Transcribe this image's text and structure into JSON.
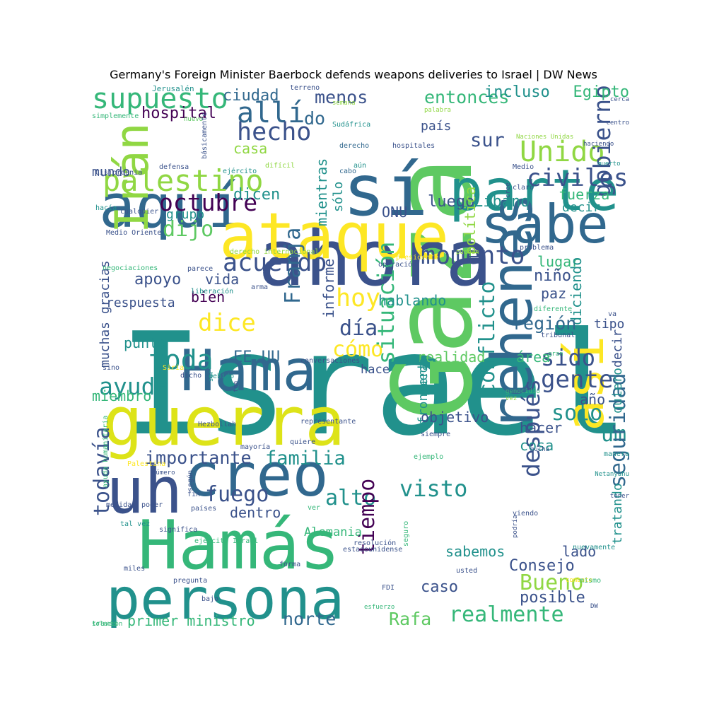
{
  "title": "Germany's Foreign Minister Baerbock defends weapons deliveries to Israel | DW News",
  "palette": {
    "dark_purple": "#440154",
    "indigo": "#3b528b",
    "blue": "#31688e",
    "teal": "#21918c",
    "sea": "#35b779",
    "green": "#5ec962",
    "lime": "#90d743",
    "yellow": "#fde725"
  },
  "words": [
    {
      "text": "Israel",
      "size": 2,
      "color": "#21918c",
      "rot": 0
    },
    {
      "text": "Gaza",
      "size": 1.45,
      "color": "#5ec962",
      "rot": -90
    },
    {
      "text": "ahora",
      "size": 1.05,
      "color": "#3b528b",
      "rot": 0
    },
    {
      "text": "sí",
      "size": 0.95,
      "color": "#31688e",
      "rot": 0
    },
    {
      "text": "parte",
      "size": 0.75,
      "color": "#21918c",
      "rot": 0
    },
    {
      "text": "aquí",
      "size": 0.8,
      "color": "#31688e",
      "rot": 0
    },
    {
      "text": "ataque",
      "size": 0.85,
      "color": "#fde725",
      "rot": 0
    },
    {
      "text": "sabe",
      "size": 0.75,
      "color": "#31688e",
      "rot": 0
    },
    {
      "text": "Hama",
      "size": 0.8,
      "color": "#31688e",
      "rot": 0
    },
    {
      "text": "guerra",
      "size": 0.9,
      "color": "#dde318",
      "rot": 0
    },
    {
      "text": "uh",
      "size": 0.9,
      "color": "#3b528b",
      "rot": 0
    },
    {
      "text": "creo",
      "size": 0.8,
      "color": "#31688e",
      "rot": 0
    },
    {
      "text": "Hamás",
      "size": 0.9,
      "color": "#35b779",
      "rot": 0
    },
    {
      "text": "persona",
      "size": 0.75,
      "color": "#21918c",
      "rot": 0
    },
    {
      "text": "rehenes",
      "size": 0.75,
      "color": "#31688e",
      "rot": -90
    },
    {
      "text": "así",
      "size": 0.7,
      "color": "#fde725",
      "rot": -90
    },
    {
      "text": "Irán",
      "size": 0.6,
      "color": "#90d743",
      "rot": -90
    },
    {
      "text": "supuesto",
      "size": 0.4,
      "color": "#35b779",
      "rot": 0
    },
    {
      "text": "allí",
      "size": 0.4,
      "color": "#31688e",
      "rot": 0
    },
    {
      "text": "hecho",
      "size": 0.35,
      "color": "#3b528b",
      "rot": 0
    },
    {
      "text": "palestino",
      "size": 0.42,
      "color": "#90d743",
      "rot": 0
    },
    {
      "text": "octubre",
      "size": 0.33,
      "color": "#440154",
      "rot": 0
    },
    {
      "text": "dijo",
      "size": 0.3,
      "color": "#5ec962",
      "rot": 0
    },
    {
      "text": "Unido",
      "size": 0.4,
      "color": "#90d743",
      "rot": 0
    },
    {
      "text": "civiles",
      "size": 0.34,
      "color": "#3b528b",
      "rot": 0
    },
    {
      "text": "gobierno",
      "size": 0.33,
      "color": "#3b528b",
      "rot": -90
    },
    {
      "text": "acuerdo",
      "size": 0.35,
      "color": "#3b528b",
      "rot": 0
    },
    {
      "text": "momento",
      "size": 0.35,
      "color": "#3b528b",
      "rot": 0
    },
    {
      "text": "hoy",
      "size": 0.35,
      "color": "#fde725",
      "rot": 0
    },
    {
      "text": "dice",
      "size": 0.34,
      "color": "#fde725",
      "rot": 0
    },
    {
      "text": "día",
      "size": 0.3,
      "color": "#3b528b",
      "rot": 0
    },
    {
      "text": "cómo",
      "size": 0.3,
      "color": "#fde725",
      "rot": 0
    },
    {
      "text": "Franja",
      "size": 0.3,
      "color": "#31688e",
      "rot": -90
    },
    {
      "text": "toda",
      "size": 0.38,
      "color": "#21918c",
      "rot": 0
    },
    {
      "text": "ayuda",
      "size": 0.33,
      "color": "#21918c",
      "rot": 0
    },
    {
      "text": "sido",
      "size": 0.32,
      "color": "#3b528b",
      "rot": 0
    },
    {
      "text": "gente",
      "size": 0.34,
      "color": "#3b528b",
      "rot": 0
    },
    {
      "text": "solo",
      "size": 0.3,
      "color": "#21918c",
      "rot": 0
    },
    {
      "text": "um",
      "size": 0.3,
      "color": "#21918c",
      "rot": 0
    },
    {
      "text": "situación",
      "size": 0.32,
      "color": "#35b779",
      "rot": -90
    },
    {
      "text": "conflicto",
      "size": 0.3,
      "color": "#21918c",
      "rot": -90
    },
    {
      "text": "visto",
      "size": 0.32,
      "color": "#21918c",
      "rot": 0
    },
    {
      "text": "familia",
      "size": 0.27,
      "color": "#21918c",
      "rot": 0
    },
    {
      "text": "importante",
      "size": 0.25,
      "color": "#3b528b",
      "rot": 0
    },
    {
      "text": "fuego",
      "size": 0.3,
      "color": "#3b528b",
      "rot": 0
    },
    {
      "text": "alto",
      "size": 0.3,
      "color": "#21918c",
      "rot": 0
    },
    {
      "text": "todavía",
      "size": 0.3,
      "color": "#3b528b",
      "rot": -90
    },
    {
      "text": "después",
      "size": 0.33,
      "color": "#3b528b",
      "rot": -90
    },
    {
      "text": "seguridad",
      "size": 0.3,
      "color": "#31688e",
      "rot": -90
    },
    {
      "text": "tiempo",
      "size": 0.3,
      "color": "#440154",
      "rot": -90
    },
    {
      "text": "Bueno",
      "size": 0.3,
      "color": "#90d743",
      "rot": 0
    },
    {
      "text": "realmente",
      "size": 0.3,
      "color": "#35b779",
      "rot": 0
    },
    {
      "text": "Rafa",
      "size": 0.25,
      "color": "#5ec962",
      "rot": 0
    },
    {
      "text": "norte",
      "size": 0.25,
      "color": "#31688e",
      "rot": 0
    },
    {
      "text": "primer ministro",
      "size": 0.2,
      "color": "#35b779",
      "rot": 0
    },
    {
      "text": "ciudad",
      "size": 0.22,
      "color": "#31688e",
      "rot": 0
    },
    {
      "text": "menos",
      "size": 0.25,
      "color": "#3b528b",
      "rot": 0
    },
    {
      "text": "entonces",
      "size": 0.25,
      "color": "#35b779",
      "rot": 0
    },
    {
      "text": "incluso",
      "size": 0.22,
      "color": "#21918c",
      "rot": 0
    },
    {
      "text": "Egipto",
      "size": 0.22,
      "color": "#35b779",
      "rot": 0
    },
    {
      "text": "hospital",
      "size": 0.22,
      "color": "#440154",
      "rot": 0
    },
    {
      "text": "do",
      "size": 0.25,
      "color": "#31688e",
      "rot": 0
    },
    {
      "text": "sur",
      "size": 0.27,
      "color": "#3b528b",
      "rot": 0
    },
    {
      "text": "mundo",
      "size": 0.18,
      "color": "#3b528b",
      "rot": 0
    },
    {
      "text": "grupo",
      "size": 0.18,
      "color": "#21918c",
      "rot": 0
    },
    {
      "text": "ONU",
      "size": 0.2,
      "color": "#3b528b",
      "rot": 0
    },
    {
      "text": "luego",
      "size": 0.22,
      "color": "#3b528b",
      "rot": 0
    },
    {
      "text": "Líbano",
      "size": 0.22,
      "color": "#21918c",
      "rot": 0
    },
    {
      "text": "fuerza",
      "size": 0.2,
      "color": "#35b779",
      "rot": 0
    },
    {
      "text": "decir",
      "size": 0.18,
      "color": "#21918c",
      "rot": 0
    },
    {
      "text": "dicen",
      "size": 0.22,
      "color": "#21918c",
      "rot": 0
    },
    {
      "text": "casa",
      "size": 0.2,
      "color": "#90d743",
      "rot": 0
    },
    {
      "text": "mientras",
      "size": 0.2,
      "color": "#21918c",
      "rot": -90
    },
    {
      "text": "sólo",
      "size": 0.18,
      "color": "#21918c",
      "rot": -90
    },
    {
      "text": "política",
      "size": 0.2,
      "color": "#90d743",
      "rot": -90
    },
    {
      "text": "país",
      "size": 0.18,
      "color": "#3b528b",
      "rot": 0
    },
    {
      "text": "vida",
      "size": 0.2,
      "color": "#3b528b",
      "rot": 0
    },
    {
      "text": "apoyo",
      "size": 0.22,
      "color": "#3b528b",
      "rot": 0
    },
    {
      "text": "respuesta",
      "size": 0.18,
      "color": "#3b528b",
      "rot": 0
    },
    {
      "text": "bien",
      "size": 0.2,
      "color": "#440154",
      "rot": 0
    },
    {
      "text": "hablando",
      "size": 0.2,
      "color": "#21918c",
      "rot": 0
    },
    {
      "text": "informe",
      "size": 0.2,
      "color": "#3b528b",
      "rot": -90
    },
    {
      "text": "lugar",
      "size": 0.2,
      "color": "#35b779",
      "rot": 0
    },
    {
      "text": "niño",
      "size": 0.22,
      "color": "#3b528b",
      "rot": 0
    },
    {
      "text": "paz",
      "size": 0.2,
      "color": "#3b528b",
      "rot": 0
    },
    {
      "text": "diciendo",
      "size": 0.2,
      "color": "#21918c",
      "rot": -90
    },
    {
      "text": "región",
      "size": 0.25,
      "color": "#31688e",
      "rot": 0
    },
    {
      "text": "tipo",
      "size": 0.18,
      "color": "#3b528b",
      "rot": 0
    },
    {
      "text": "muchas gracias",
      "size": 0.18,
      "color": "#3b528b",
      "rot": -90
    },
    {
      "text": "punto",
      "size": 0.2,
      "color": "#21918c",
      "rot": 0
    },
    {
      "text": "EE UU",
      "size": 0.22,
      "color": "#31688e",
      "rot": 0
    },
    {
      "text": "realidad",
      "size": 0.2,
      "color": "#5ec962",
      "rot": 0
    },
    {
      "text": "área",
      "size": 0.2,
      "color": "#35b779",
      "rot": 0
    },
    {
      "text": "decir",
      "size": 0.18,
      "color": "#3b528b",
      "rot": -90
    },
    {
      "text": "quiero",
      "size": 0.18,
      "color": "#21918c",
      "rot": -90
    },
    {
      "text": "año",
      "size": 0.2,
      "color": "#3b528b",
      "rot": 0
    },
    {
      "text": "miembro",
      "size": 0.2,
      "color": "#35b779",
      "rot": 0
    },
    {
      "text": "hace",
      "size": 0.17,
      "color": "#3b528b",
      "rot": 0
    },
    {
      "text": "puede",
      "size": 0.18,
      "color": "#21918c",
      "rot": -90
    },
    {
      "text": "frontera",
      "size": 0.18,
      "color": "#21918c",
      "rot": -90
    },
    {
      "text": "objetivo",
      "size": 0.2,
      "color": "#3b528b",
      "rot": 0
    },
    {
      "text": "hacer",
      "size": 0.2,
      "color": "#3b528b",
      "rot": 0
    },
    {
      "text": "cosa",
      "size": 0.2,
      "color": "#21918c",
      "rot": 0
    },
    {
      "text": "dentro",
      "size": 0.2,
      "color": "#3b528b",
      "rot": 0
    },
    {
      "text": "Alemania",
      "size": 0.17,
      "color": "#35b779",
      "rot": 0
    },
    {
      "text": "tratando",
      "size": 0.18,
      "color": "#21918c",
      "rot": -90
    },
    {
      "text": "lado",
      "size": 0.2,
      "color": "#3b528b",
      "rot": 0
    },
    {
      "text": "sabemos",
      "size": 0.2,
      "color": "#21918c",
      "rot": 0
    },
    {
      "text": "Consejo",
      "size": 0.22,
      "color": "#3b528b",
      "rot": 0
    },
    {
      "text": "caso",
      "size": 0.22,
      "color": "#3b528b",
      "rot": 0
    },
    {
      "text": "posible",
      "size": 0.22,
      "color": "#3b528b",
      "rot": 0
    },
    {
      "text": "Jerusalén",
      "size": 0.11,
      "color": "#21918c",
      "rot": 0
    },
    {
      "text": "terreno",
      "size": 0.1,
      "color": "#3b528b",
      "rot": 0
    },
    {
      "text": "semana",
      "size": 0.09,
      "color": "#90d743",
      "rot": 0
    },
    {
      "text": "simplemente",
      "size": 0.1,
      "color": "#35b779",
      "rot": 0
    },
    {
      "text": "nuevo",
      "size": 0.09,
      "color": "#5ec962",
      "rot": 0
    },
    {
      "text": "Sudáfrica",
      "size": 0.1,
      "color": "#21918c",
      "rot": 0
    },
    {
      "text": "palabra",
      "size": 0.09,
      "color": "#90d743",
      "rot": 0
    },
    {
      "text": "cerca",
      "size": 0.09,
      "color": "#3b528b",
      "rot": 0
    },
    {
      "text": "centro",
      "size": 0.09,
      "color": "#3b528b",
      "rot": 0
    },
    {
      "text": "básicamente",
      "size": 0.1,
      "color": "#3b528b",
      "rot": -90
    },
    {
      "text": "derecho",
      "size": 0.1,
      "color": "#31688e",
      "rot": 0
    },
    {
      "text": "hospitales",
      "size": 0.1,
      "color": "#3b528b",
      "rot": 0
    },
    {
      "text": "Naciones Unidas",
      "size": 0.09,
      "color": "#90d743",
      "rot": 0
    },
    {
      "text": "haciendo",
      "size": 0.09,
      "color": "#3b528b",
      "rot": 0
    },
    {
      "text": "defensa",
      "size": 0.1,
      "color": "#3b528b",
      "rot": 0
    },
    {
      "text": "ejército",
      "size": 0.1,
      "color": "#21918c",
      "rot": 0
    },
    {
      "text": "difícil",
      "size": 0.1,
      "color": "#90d743",
      "rot": 0
    },
    {
      "text": "aún",
      "size": 0.1,
      "color": "#21918c",
      "rot": 0
    },
    {
      "text": "Medio",
      "size": 0.1,
      "color": "#3b528b",
      "rot": 0
    },
    {
      "text": "muerto",
      "size": 0.09,
      "color": "#21918c",
      "rot": 0
    },
    {
      "text": "Cisjordania",
      "size": 0.1,
      "color": "#3b528b",
      "rot": 0
    },
    {
      "text": "cabo",
      "size": 0.1,
      "color": "#31688e",
      "rot": 0
    },
    {
      "text": "cree",
      "size": 0.09,
      "color": "#3b528b",
      "rot": -90
    },
    {
      "text": "claro",
      "size": 0.1,
      "color": "#3b528b",
      "rot": 0
    },
    {
      "text": "hacía",
      "size": 0.1,
      "color": "#21918c",
      "rot": 0
    },
    {
      "text": "cualquier",
      "size": 0.1,
      "color": "#3b528b",
      "rot": 0
    },
    {
      "text": "Medio Oriente",
      "size": 0.1,
      "color": "#3b528b",
      "rot": 0
    },
    {
      "text": "derecho internacional",
      "size": 0.1,
      "color": "#90d743",
      "rot": 0
    },
    {
      "text": "pueden",
      "size": 0.09,
      "color": "#90d743",
      "rot": 0
    },
    {
      "text": "presidente",
      "size": 0.1,
      "color": "#fde725",
      "rot": 0
    },
    {
      "text": "problema",
      "size": 0.1,
      "color": "#3b528b",
      "rot": 0
    },
    {
      "text": "parece",
      "size": 0.1,
      "color": "#3b528b",
      "rot": 0
    },
    {
      "text": "operación",
      "size": 0.1,
      "color": "#3b528b",
      "rot": 0
    },
    {
      "text": "negociaciones",
      "size": 0.1,
      "color": "#35b779",
      "rot": 0
    },
    {
      "text": "arma",
      "size": 0.09,
      "color": "#3b528b",
      "rot": 0
    },
    {
      "text": "liberación",
      "size": 0.1,
      "color": "#21918c",
      "rot": 0
    },
    {
      "text": "diferente",
      "size": 0.1,
      "color": "#35b779",
      "rot": 0
    },
    {
      "text": "va",
      "size": 0.1,
      "color": "#3b528b",
      "rot": 0
    },
    {
      "text": "tribunal",
      "size": 0.1,
      "color": "#3b528b",
      "rot": 0
    },
    {
      "text": "gran",
      "size": 0.09,
      "color": "#35b779",
      "rot": 0
    },
    {
      "text": "conversaciones",
      "size": 0.1,
      "color": "#3b528b",
      "rot": 0
    },
    {
      "text": "sino",
      "size": 0.1,
      "color": "#3b528b",
      "rot": 0
    },
    {
      "text": "Siria",
      "size": 0.1,
      "color": "#fde725",
      "rot": 0
    },
    {
      "text": "dicho",
      "size": 0.1,
      "color": "#3b528b",
      "rot": 0
    },
    {
      "text": "debido",
      "size": 0.1,
      "color": "#21918c",
      "rot": 0
    },
    {
      "text": "ser",
      "size": 0.09,
      "color": "#21918c",
      "rot": -90
    },
    {
      "text": "tan",
      "size": 0.09,
      "color": "#3b528b",
      "rot": -90
    },
    {
      "text": "vez",
      "size": 0.09,
      "color": "#90d743",
      "rot": 0
    },
    {
      "text": "genocidio",
      "size": 0.09,
      "color": "#35b779",
      "rot": 0
    },
    {
      "text": "Hezbollah",
      "size": 0.1,
      "color": "#3b528b",
      "rot": 0
    },
    {
      "text": "representante",
      "size": 0.1,
      "color": "#3b528b",
      "rot": 0
    },
    {
      "text": "ayuda humanitaria",
      "size": 0.1,
      "color": "#35b779",
      "rot": -90
    },
    {
      "text": "quiere",
      "size": 0.1,
      "color": "#3b528b",
      "rot": 0
    },
    {
      "text": "siempre",
      "size": 0.1,
      "color": "#3b528b",
      "rot": 0
    },
    {
      "text": "mayoría",
      "size": 0.1,
      "color": "#3b528b",
      "rot": 0
    },
    {
      "text": "mucha",
      "size": 0.09,
      "color": "#3b528b",
      "rot": 0
    },
    {
      "text": "manera",
      "size": 0.1,
      "color": "#21918c",
      "rot": 0
    },
    {
      "text": "Palestina",
      "size": 0.1,
      "color": "#fde725",
      "rot": 0
    },
    {
      "text": "número",
      "size": 0.1,
      "color": "#3b528b",
      "rot": 0
    },
    {
      "text": "ejemplo",
      "size": 0.1,
      "color": "#35b779",
      "rot": 0
    },
    {
      "text": "Netanyahu",
      "size": 0.1,
      "color": "#21918c",
      "rot": 0
    },
    {
      "text": "fin",
      "size": 0.09,
      "color": "#3b528b",
      "rot": 0
    },
    {
      "text": "según",
      "size": 0.09,
      "color": "#3b528b",
      "rot": -90
    },
    {
      "text": "medida",
      "size": 0.1,
      "color": "#3b528b",
      "rot": 0
    },
    {
      "text": "poder",
      "size": 0.1,
      "color": "#3b528b",
      "rot": 0
    },
    {
      "text": "ver",
      "size": 0.1,
      "color": "#35b779",
      "rot": 0
    },
    {
      "text": "países",
      "size": 0.1,
      "color": "#3b528b",
      "rot": 0
    },
    {
      "text": "viendo",
      "size": 0.1,
      "color": "#3b528b",
      "rot": 0
    },
    {
      "text": "tener",
      "size": 0.09,
      "color": "#3b528b",
      "rot": 0
    },
    {
      "text": "tal vez",
      "size": 0.1,
      "color": "#21918c",
      "rot": 0
    },
    {
      "text": "significa",
      "size": 0.1,
      "color": "#3b528b",
      "rot": 0
    },
    {
      "text": "ejército Israel",
      "size": 0.1,
      "color": "#35b779",
      "rot": 0
    },
    {
      "text": "forma",
      "size": 0.1,
      "color": "#3b528b",
      "rot": 0
    },
    {
      "text": "FDI",
      "size": 0.1,
      "color": "#3b528b",
      "rot": 0
    },
    {
      "text": "estadounidense",
      "size": 0.1,
      "color": "#3b528b",
      "rot": 0
    },
    {
      "text": "resolución",
      "size": 0.1,
      "color": "#3b528b",
      "rot": 0
    },
    {
      "text": "seguro",
      "size": 0.09,
      "color": "#35b779",
      "rot": -90
    },
    {
      "text": "nuevamente",
      "size": 0.09,
      "color": "#21918c",
      "rot": 0
    },
    {
      "text": "podría",
      "size": 0.09,
      "color": "#3b528b",
      "rot": -90
    },
    {
      "text": "usted",
      "size": 0.1,
      "color": "#3b528b",
      "rot": 0
    },
    {
      "text": "esfuerzo",
      "size": 0.1,
      "color": "#35b779",
      "rot": 0
    },
    {
      "text": "combate",
      "size": 0.09,
      "color": "#fde725",
      "rot": 0
    },
    {
      "text": "miles",
      "size": 0.1,
      "color": "#3b528b",
      "rot": 0
    },
    {
      "text": "pregunta",
      "size": 0.1,
      "color": "#3b528b",
      "rot": 0
    },
    {
      "text": "bajo",
      "size": 0.1,
      "color": "#3b528b",
      "rot": 0
    },
    {
      "text": "mismo",
      "size": 0.09,
      "color": "#35b779",
      "rot": 0
    },
    {
      "text": "DW",
      "size": 0.09,
      "color": "#3b528b",
      "rot": 0
    },
    {
      "text": "través",
      "size": 0.09,
      "color": "#35b779",
      "rot": 0
    },
    {
      "text": "solución",
      "size": 0.09,
      "color": "#35b779",
      "rot": 0
    }
  ]
}
